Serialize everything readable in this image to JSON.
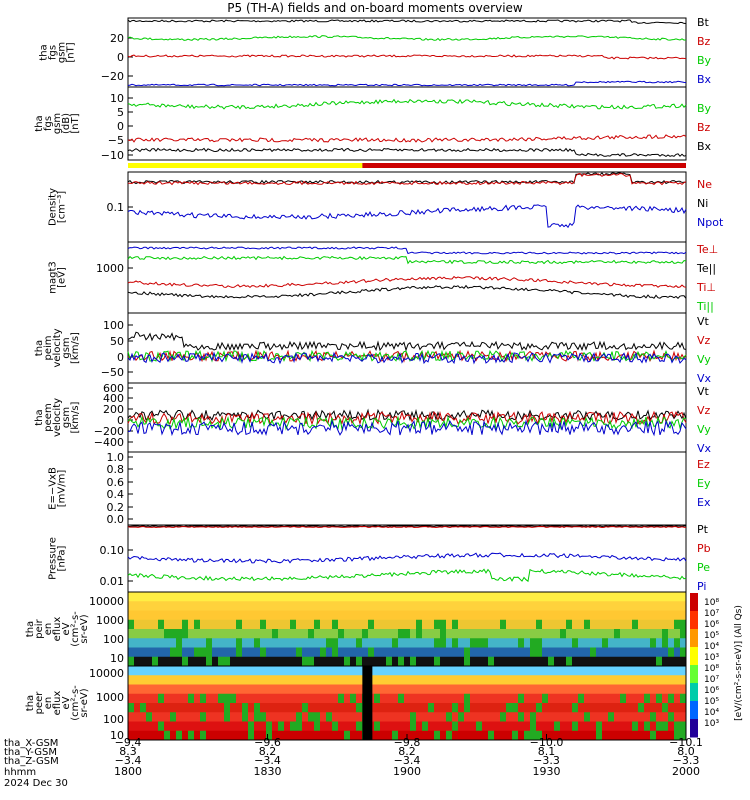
{
  "title": "P5 (TH-A) fields and on-board moments overview",
  "colors": {
    "black": "#000000",
    "red": "#cc0000",
    "green": "#00cc00",
    "blue": "#0000cc",
    "yellow": "#ffff00"
  },
  "panels": [
    {
      "id": "fgs-gsm",
      "ylabel": [
        "tha",
        "fgs",
        "gsm",
        "[nT]"
      ],
      "yticks": [
        "20",
        "0",
        "−20"
      ],
      "legend": [
        {
          "text": "Bt",
          "color": "black"
        },
        {
          "text": "Bz",
          "color": "red"
        },
        {
          "text": "By",
          "color": "green"
        },
        {
          "text": "Bx",
          "color": "blue"
        }
      ]
    },
    {
      "id": "fgs-gsm-zoom",
      "ylabel": [
        "tha",
        "fgs",
        "gsm",
        "(dB)",
        "[nT]"
      ],
      "yticks": [
        "10",
        "5",
        "0",
        "−5",
        "−10"
      ],
      "legend": [
        {
          "text": "By",
          "color": "green"
        },
        {
          "text": "Bz",
          "color": "red"
        },
        {
          "text": "Bx",
          "color": "black"
        }
      ]
    },
    {
      "id": "density",
      "ylabel": [
        "Density",
        "[cm⁻³]"
      ],
      "yticks": [
        "0.1"
      ],
      "legend": [
        {
          "text": "Ne",
          "color": "red"
        },
        {
          "text": "Ni",
          "color": "black"
        },
        {
          "text": "Npot",
          "color": "blue"
        }
      ]
    },
    {
      "id": "temperature",
      "ylabel": [
        "magt3",
        "[eV]"
      ],
      "yticks": [
        "1000"
      ],
      "legend": [
        {
          "text": "Te⊥",
          "color": "red"
        },
        {
          "text": "Te||",
          "color": "black"
        },
        {
          "text": "Ti⊥",
          "color": "red"
        },
        {
          "text": "Ti||",
          "color": "green"
        }
      ]
    },
    {
      "id": "peim-velocity",
      "ylabel": [
        "tha",
        "peim",
        "velocity",
        "gsm",
        "[km/s]"
      ],
      "yticks": [
        "100",
        "50",
        "0",
        "−50"
      ],
      "legend": [
        {
          "text": "Vt",
          "color": "black"
        },
        {
          "text": "Vz",
          "color": "red"
        },
        {
          "text": "Vy",
          "color": "green"
        },
        {
          "text": "Vx",
          "color": "blue"
        }
      ]
    },
    {
      "id": "peem-velocity",
      "ylabel": [
        "tha",
        "peem",
        "velocity",
        "gsm",
        "[km/s]"
      ],
      "yticks": [
        "600",
        "400",
        "200",
        "0",
        "−200",
        "−400"
      ],
      "legend": [
        {
          "text": "Vt",
          "color": "black"
        },
        {
          "text": "Vz",
          "color": "red"
        },
        {
          "text": "Vy",
          "color": "green"
        },
        {
          "text": "Vx",
          "color": "blue"
        }
      ]
    },
    {
      "id": "efield",
      "ylabel": [
        "E=−VxB",
        "[mV/m]"
      ],
      "yticks": [
        "1.0",
        "0.8",
        "0.6",
        "0.4",
        "0.2",
        "0.0"
      ],
      "legend": [
        {
          "text": "Ez",
          "color": "red"
        },
        {
          "text": "Ey",
          "color": "green"
        },
        {
          "text": "Ex",
          "color": "blue"
        }
      ]
    },
    {
      "id": "pressure",
      "ylabel": [
        "Pressure",
        "[nPa]"
      ],
      "yticks": [
        "0.10",
        "0.01"
      ],
      "legend": [
        {
          "text": "Pt",
          "color": "black"
        },
        {
          "text": "Pb",
          "color": "red"
        },
        {
          "text": "Pe",
          "color": "green"
        },
        {
          "text": "Pi",
          "color": "blue"
        }
      ]
    },
    {
      "id": "peir-spectrum",
      "ylabel": [
        "tha",
        "peir",
        "en",
        "eflux",
        "eV",
        "(cm²-s-",
        "sr-eV)"
      ],
      "yticks": [
        "10000",
        "1000",
        "100",
        "10"
      ],
      "legend": []
    },
    {
      "id": "peer-spectrum",
      "ylabel": [
        "tha",
        "peer",
        "en",
        "eflux",
        "eV",
        "(cm²-s-",
        "sr-eV)"
      ],
      "yticks": [
        "10000",
        "1000",
        "100",
        "10"
      ],
      "legend": []
    }
  ],
  "colorbar": {
    "ticks": [
      "10⁸",
      "10⁷",
      "10⁶",
      "10⁵",
      "10⁴",
      "10³",
      "10⁸",
      "10⁷",
      "10⁶",
      "10⁵",
      "10⁴",
      "10³"
    ],
    "label": "[eV/(cm²-s-sr-eV)] (All Qs)"
  },
  "mode_bar": {
    "slow_color": "yellow",
    "fast_color": "red",
    "switch_time": "1850"
  },
  "xaxis": {
    "row_labels": [
      "tha_X-GSM",
      "tha_Y-GSM",
      "tha_Z-GSM",
      "hhmm",
      "2024 Dec 30"
    ],
    "ticks": [
      {
        "time": "1800",
        "x_gsm": "−9.4",
        "y_gsm": "8.3",
        "z_gsm": "−3.4"
      },
      {
        "time": "1830",
        "x_gsm": "−9.6",
        "y_gsm": "8.2",
        "z_gsm": "−3.4"
      },
      {
        "time": "1900",
        "x_gsm": "−9.8",
        "y_gsm": "8.2",
        "z_gsm": "−3.4"
      },
      {
        "time": "1930",
        "x_gsm": "−10.0",
        "y_gsm": "8.1",
        "z_gsm": "−3.3"
      },
      {
        "time": "2000",
        "x_gsm": "−10.1",
        "y_gsm": "8.0",
        "z_gsm": "−3.3"
      }
    ]
  },
  "chart_data": {
    "type": "line",
    "title": "P5 (TH-A) fields and on-board moments overview",
    "x_range": [
      "18:00",
      "20:00"
    ],
    "series": [
      {
        "panel": "fgs-gsm",
        "name": "Bt",
        "approx_value": 38
      },
      {
        "panel": "fgs-gsm",
        "name": "Bz",
        "approx_value": 2
      },
      {
        "panel": "fgs-gsm",
        "name": "By",
        "approx_value": 22
      },
      {
        "panel": "fgs-gsm",
        "name": "Bx",
        "approx_value": -31
      },
      {
        "panel": "density",
        "name": "Ne",
        "approx_value": 0.25
      },
      {
        "panel": "density",
        "name": "Ni",
        "approx_value": 0.25
      },
      {
        "panel": "density",
        "name": "Npot",
        "approx_value": 0.09
      },
      {
        "panel": "pressure",
        "name": "Pt",
        "approx_value": 0.25
      },
      {
        "panel": "pressure",
        "name": "Pb",
        "approx_value": 0.24
      },
      {
        "panel": "pressure",
        "name": "Pi",
        "approx_value": 0.05
      },
      {
        "panel": "pressure",
        "name": "Pe",
        "approx_value": 0.015
      }
    ]
  }
}
